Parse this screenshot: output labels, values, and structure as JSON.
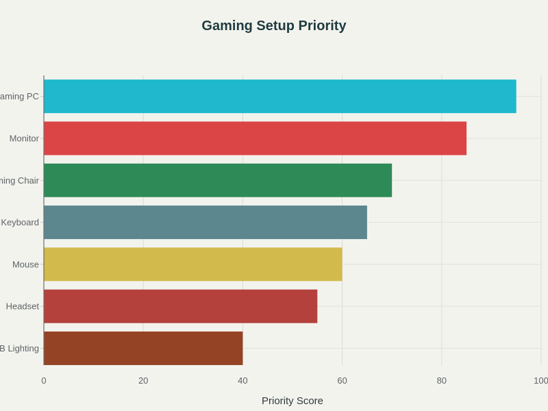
{
  "chart_data": {
    "type": "bar",
    "orientation": "horizontal",
    "title": "Gaming Setup Priority",
    "xlabel": "Priority Score",
    "ylabel": "",
    "xlim": [
      0,
      100
    ],
    "xticks": [
      0,
      20,
      40,
      60,
      80,
      100
    ],
    "grid": true,
    "categories": [
      "RGB Lighting",
      "Headset",
      "Mouse",
      "Keyboard",
      "Gaming Chair",
      "Monitor",
      "Gaming PC"
    ],
    "values": [
      40,
      55,
      60,
      65,
      70,
      85,
      95
    ],
    "colors": [
      "#944424",
      "#b4413c",
      "#d2ba4c",
      "#5d878f",
      "#2e8b57",
      "#db4545",
      "#1fb8cd"
    ]
  }
}
